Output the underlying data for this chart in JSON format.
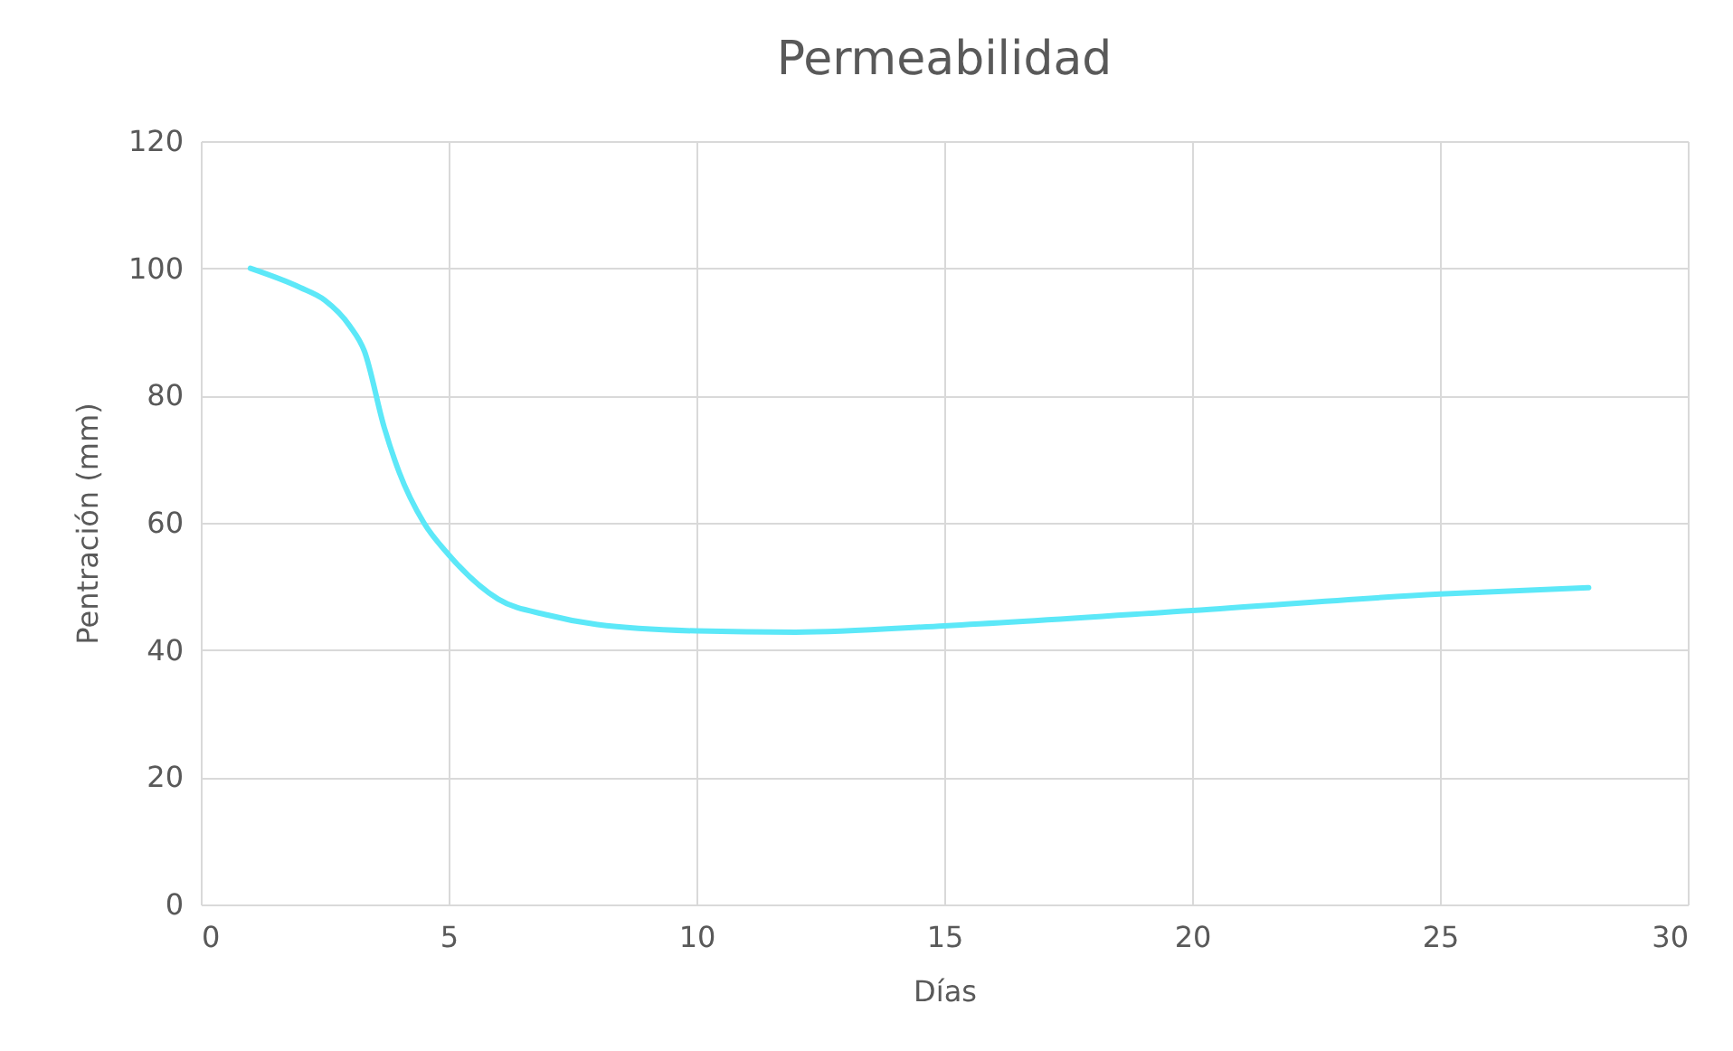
{
  "chart_data": {
    "type": "line",
    "title": "Permeabilidad",
    "xlabel": "Días",
    "ylabel": "Pentración (mm)",
    "series": [
      {
        "color": "#5ce8f8",
        "x": [
          1,
          2,
          2.5,
          3,
          3.3,
          3.7,
          4,
          4.5,
          5,
          6,
          7,
          8,
          10,
          12,
          15,
          20,
          25,
          28
        ],
        "values": [
          100,
          97,
          95,
          91,
          87,
          75,
          68,
          60,
          55,
          48,
          45.5,
          44,
          43,
          42.8,
          43.8,
          46.2,
          48.8,
          49.8
        ]
      }
    ],
    "xlim": [
      0,
      30
    ],
    "xticks": [
      0,
      5,
      10,
      15,
      20,
      25,
      30
    ],
    "ylim": [
      0,
      120
    ],
    "yticks": [
      0,
      20,
      40,
      60,
      80,
      100,
      120
    ],
    "grid": true,
    "marker": "none",
    "line_style": "solid"
  }
}
